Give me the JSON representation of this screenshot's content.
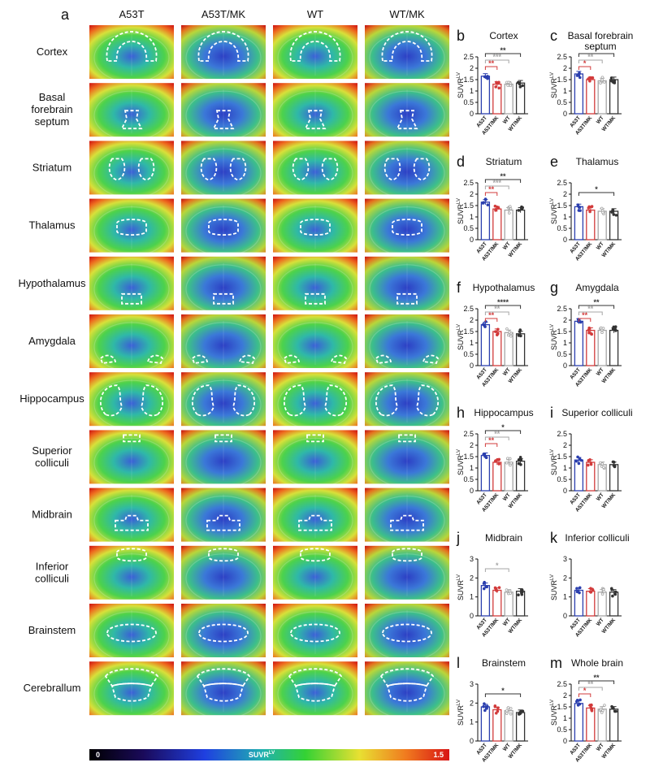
{
  "figure": {
    "panel_a_letter": "a",
    "columns": [
      "A53T",
      "A53T/MK",
      "WT",
      "WT/MK"
    ],
    "regions": [
      "Cortex",
      "Basal\nforebrain\nseptum",
      "Striatum",
      "Thalamus",
      "Hypothalamus",
      "Amygdala",
      "Hippocampus",
      "Superior\ncolliculi",
      "Midbrain",
      "Inferior\ncolliculi",
      "Brainstem",
      "Cerebrallum"
    ],
    "colorbar": {
      "min_label": "0",
      "mid_label": "SUVR",
      "mid_sup": "LV",
      "max_label": "1.5"
    }
  },
  "chart_data": [
    {
      "letter": "b",
      "title": "Cortex",
      "type": "bar",
      "categories": [
        "A53T",
        "A53T/MK",
        "WT",
        "WT/MK"
      ],
      "values": [
        1.65,
        1.3,
        1.3,
        1.35
      ],
      "ylim": [
        0,
        2.5
      ],
      "yticks": [
        0,
        0.5,
        1,
        1.5,
        2,
        2.5
      ],
      "ylabel": "SUVR",
      "ylabel_sup": "LV",
      "annotations": [
        {
          "from": 0,
          "to": 1,
          "label": "**",
          "color": "#d23b3b"
        },
        {
          "from": 0,
          "to": 2,
          "label": "***",
          "color": "#a6a6a6"
        },
        {
          "from": 0,
          "to": 3,
          "label": "**",
          "color": "#333333"
        }
      ]
    },
    {
      "letter": "c",
      "title": "Basal forebrain\nseptum",
      "type": "bar",
      "categories": [
        "A53T",
        "A53T/MK",
        "WT",
        "WT/MK"
      ],
      "values": [
        1.75,
        1.5,
        1.45,
        1.5
      ],
      "ylim": [
        0,
        2.5
      ],
      "yticks": [
        0,
        0.5,
        1,
        1.5,
        2,
        2.5
      ],
      "ylabel": "SUVR",
      "ylabel_sup": "LV",
      "annotations": [
        {
          "from": 0,
          "to": 1,
          "label": "*",
          "color": "#d23b3b"
        },
        {
          "from": 0,
          "to": 2,
          "label": "**",
          "color": "#a6a6a6"
        },
        {
          "from": 0,
          "to": 3,
          "label": "*",
          "color": "#333333"
        }
      ]
    },
    {
      "letter": "d",
      "title": "Striatum",
      "type": "bar",
      "categories": [
        "A53T",
        "A53T/MK",
        "WT",
        "WT/MK"
      ],
      "values": [
        1.65,
        1.35,
        1.3,
        1.3
      ],
      "ylim": [
        0,
        2.5
      ],
      "yticks": [
        0,
        0.5,
        1,
        1.5,
        2,
        2.5
      ],
      "ylabel": "SUVR",
      "ylabel_sup": "LV",
      "annotations": [
        {
          "from": 0,
          "to": 1,
          "label": "**",
          "color": "#d23b3b"
        },
        {
          "from": 0,
          "to": 2,
          "label": "***",
          "color": "#a6a6a6"
        },
        {
          "from": 0,
          "to": 3,
          "label": "**",
          "color": "#333333"
        }
      ]
    },
    {
      "letter": "e",
      "title": "Thalamus",
      "type": "bar",
      "categories": [
        "A53T",
        "A53T/MK",
        "WT",
        "WT/MK"
      ],
      "values": [
        1.45,
        1.3,
        1.25,
        1.25
      ],
      "ylim": [
        0,
        2.5
      ],
      "yticks": [
        0,
        0.5,
        1,
        1.5,
        2,
        2.5
      ],
      "ylabel": "SUVR",
      "ylabel_sup": "LV",
      "annotations": [
        {
          "from": 0,
          "to": 3,
          "label": "*",
          "color": "#333333"
        }
      ]
    },
    {
      "letter": "f",
      "title": "Hypothalamus",
      "type": "bar",
      "categories": [
        "A53T",
        "A53T/MK",
        "WT",
        "WT/MK"
      ],
      "values": [
        1.8,
        1.5,
        1.45,
        1.4
      ],
      "ylim": [
        0,
        2.5
      ],
      "yticks": [
        0,
        0.5,
        1,
        1.5,
        2,
        2.5
      ],
      "ylabel": "SUVR",
      "ylabel_sup": "LV",
      "annotations": [
        {
          "from": 0,
          "to": 1,
          "label": "**",
          "color": "#d23b3b"
        },
        {
          "from": 0,
          "to": 2,
          "label": "**",
          "color": "#a6a6a6"
        },
        {
          "from": 0,
          "to": 3,
          "label": "****",
          "color": "#333333"
        }
      ]
    },
    {
      "letter": "g",
      "title": "Amygdala",
      "type": "bar",
      "categories": [
        "A53T",
        "A53T/MK",
        "WT",
        "WT/MK"
      ],
      "values": [
        1.95,
        1.55,
        1.55,
        1.55
      ],
      "ylim": [
        0,
        2.5
      ],
      "yticks": [
        0,
        0.5,
        1,
        1.5,
        2,
        2.5
      ],
      "ylabel": "SUVR",
      "ylabel_sup": "LV",
      "annotations": [
        {
          "from": 0,
          "to": 1,
          "label": "**",
          "color": "#d23b3b"
        },
        {
          "from": 0,
          "to": 2,
          "label": "**",
          "color": "#a6a6a6"
        },
        {
          "from": 0,
          "to": 3,
          "label": "**",
          "color": "#333333"
        }
      ]
    },
    {
      "letter": "h",
      "title": "Hippocampus",
      "type": "bar",
      "categories": [
        "A53T",
        "A53T/MK",
        "WT",
        "WT/MK"
      ],
      "values": [
        1.55,
        1.25,
        1.25,
        1.3
      ],
      "ylim": [
        0,
        2.5
      ],
      "yticks": [
        0,
        0.5,
        1,
        1.5,
        2,
        2.5
      ],
      "ylabel": "SUVR",
      "ylabel_sup": "LV",
      "annotations": [
        {
          "from": 0,
          "to": 1,
          "label": "**",
          "color": "#d23b3b"
        },
        {
          "from": 0,
          "to": 2,
          "label": "**",
          "color": "#a6a6a6"
        },
        {
          "from": 0,
          "to": 3,
          "label": "*",
          "color": "#333333"
        }
      ]
    },
    {
      "letter": "i",
      "title": "Superior colliculi",
      "type": "bar",
      "categories": [
        "A53T",
        "A53T/MK",
        "WT",
        "WT/MK"
      ],
      "values": [
        1.35,
        1.25,
        1.15,
        1.15
      ],
      "ylim": [
        0,
        2.5
      ],
      "yticks": [
        0,
        0.5,
        1,
        1.5,
        2,
        2.5
      ],
      "ylabel": "SUVR",
      "ylabel_sup": "LV",
      "annotations": []
    },
    {
      "letter": "j",
      "title": "Midbrain",
      "type": "bar",
      "categories": [
        "A53T",
        "A53T/MK",
        "WT",
        "WT/MK"
      ],
      "values": [
        1.6,
        1.35,
        1.25,
        1.3
      ],
      "ylim": [
        0,
        3
      ],
      "yticks": [
        0,
        1,
        2,
        3
      ],
      "ylabel": "SUVR",
      "ylabel_sup": "LV",
      "annotations": [
        {
          "from": 0,
          "to": 2,
          "label": "*",
          "color": "#a6a6a6"
        }
      ]
    },
    {
      "letter": "k",
      "title": "Inferior colliculi",
      "type": "bar",
      "categories": [
        "A53T",
        "A53T/MK",
        "WT",
        "WT/MK"
      ],
      "values": [
        1.35,
        1.3,
        1.25,
        1.25
      ],
      "ylim": [
        0,
        3
      ],
      "yticks": [
        0,
        1,
        2,
        3
      ],
      "ylabel": "SUVR",
      "ylabel_sup": "LV",
      "annotations": []
    },
    {
      "letter": "l",
      "title": "Brainstem",
      "type": "bar",
      "categories": [
        "A53T",
        "A53T/MK",
        "WT",
        "WT/MK"
      ],
      "values": [
        1.8,
        1.65,
        1.6,
        1.5
      ],
      "ylim": [
        0,
        3
      ],
      "yticks": [
        0,
        1,
        2,
        3
      ],
      "ylabel": "SUVR",
      "ylabel_sup": "LV",
      "annotations": [
        {
          "from": 0,
          "to": 3,
          "label": "*",
          "color": "#333333"
        }
      ]
    },
    {
      "letter": "m",
      "title": "Whole brain",
      "type": "bar",
      "categories": [
        "A53T",
        "A53T/MK",
        "WT",
        "WT/MK"
      ],
      "values": [
        1.65,
        1.45,
        1.4,
        1.4
      ],
      "ylim": [
        0,
        2.5
      ],
      "yticks": [
        0,
        0.5,
        1,
        1.5,
        2,
        2.5
      ],
      "ylabel": "SUVR",
      "ylabel_sup": "LV",
      "annotations": [
        {
          "from": 0,
          "to": 1,
          "label": "*",
          "color": "#d23b3b"
        },
        {
          "from": 0,
          "to": 2,
          "label": "**",
          "color": "#a6a6a6"
        },
        {
          "from": 0,
          "to": 3,
          "label": "**",
          "color": "#333333"
        }
      ]
    }
  ],
  "colors": {
    "A53T": "#2b3fae",
    "A53T/MK": "#d23b3b",
    "WT": "#a6a6a6",
    "WT/MK": "#333333"
  }
}
